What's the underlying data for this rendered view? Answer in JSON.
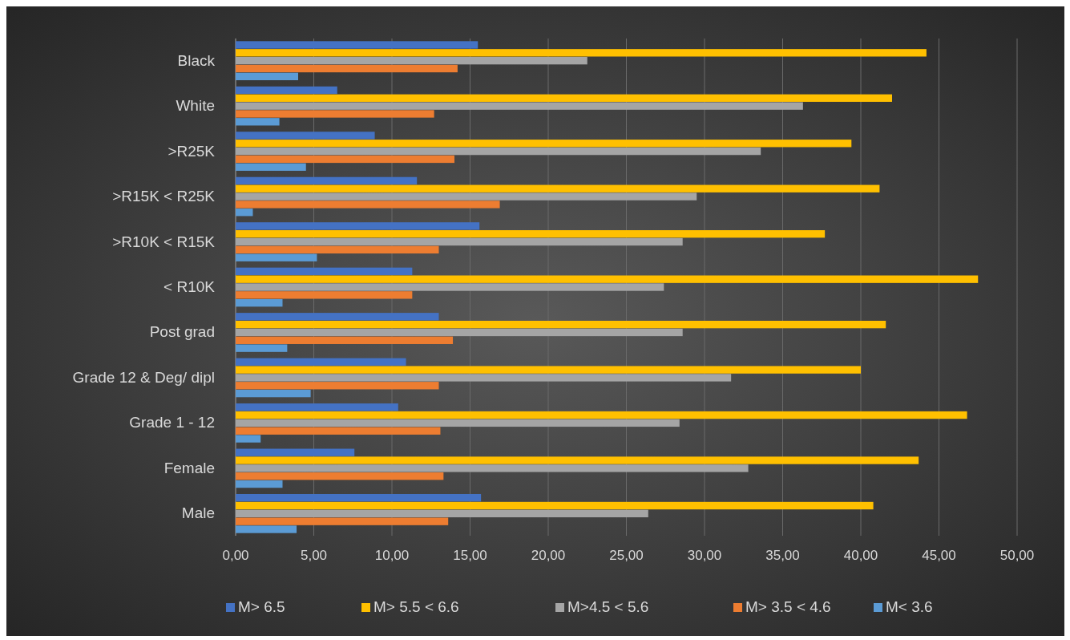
{
  "chart_data": {
    "type": "bar",
    "orientation": "horizontal",
    "categories": [
      "Black",
      "White",
      ">R25K",
      ">R15K < R25K",
      ">R10K < R15K",
      "< R10K",
      "Post grad",
      "Grade 12 & Deg/ dipl",
      "Grade 1 - 12",
      "Female",
      "Male"
    ],
    "series": [
      {
        "name": "M> 6.5",
        "color": "#4472c4",
        "values": [
          15.5,
          6.5,
          8.9,
          11.6,
          15.6,
          11.3,
          13.0,
          10.9,
          10.4,
          7.6,
          15.7
        ]
      },
      {
        "name": "M> 5.5 < 6.6",
        "color": "#ffc000",
        "values": [
          44.2,
          42.0,
          39.4,
          41.2,
          37.7,
          47.5,
          41.6,
          40.0,
          46.8,
          43.7,
          40.8
        ]
      },
      {
        "name": "M>4.5 < 5.6",
        "color": "#a5a5a5",
        "values": [
          22.5,
          36.3,
          33.6,
          29.5,
          28.6,
          27.4,
          28.6,
          31.7,
          28.4,
          32.8,
          26.4
        ]
      },
      {
        "name": "M> 3.5 < 4.6",
        "color": "#ed7d31",
        "values": [
          14.2,
          12.7,
          14.0,
          16.9,
          13.0,
          11.3,
          13.9,
          13.0,
          13.1,
          13.3,
          13.6
        ]
      },
      {
        "name": "M< 3.6",
        "color": "#5b9bd5",
        "values": [
          4.0,
          2.8,
          4.5,
          1.1,
          5.2,
          3.0,
          3.3,
          4.8,
          1.6,
          3.0,
          3.9
        ]
      }
    ],
    "xlim": [
      0,
      50
    ],
    "xticks": [
      {
        "value": 0,
        "label": "0,00"
      },
      {
        "value": 5,
        "label": "5,00"
      },
      {
        "value": 10,
        "label": "10,00"
      },
      {
        "value": 15,
        "label": "15,00"
      },
      {
        "value": 20,
        "label": "20,00"
      },
      {
        "value": 25,
        "label": "25,00"
      },
      {
        "value": 30,
        "label": "30,00"
      },
      {
        "value": 35,
        "label": "35,00"
      },
      {
        "value": 40,
        "label": "40,00"
      },
      {
        "value": 45,
        "label": "45,00"
      },
      {
        "value": 50,
        "label": "50,00"
      }
    ],
    "grid": "x",
    "legend": "bottom"
  }
}
